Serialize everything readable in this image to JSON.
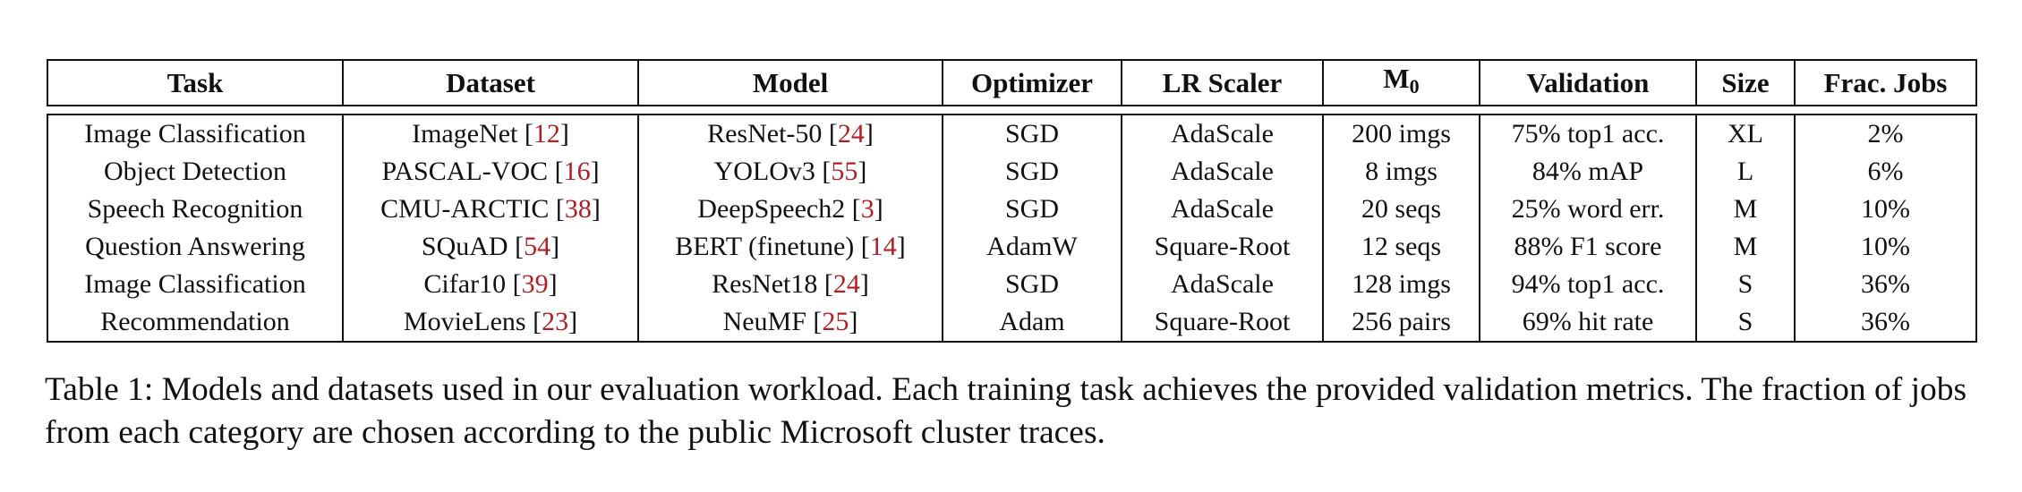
{
  "table": {
    "headers": {
      "task": "Task",
      "dataset": "Dataset",
      "model": "Model",
      "optimizer": "Optimizer",
      "lr_scaler": "LR Scaler",
      "m0_base": "M",
      "m0_sub": "0",
      "validation": "Validation",
      "size": "Size",
      "frac_jobs": "Frac. Jobs"
    },
    "rows": [
      {
        "task": "Image Classification",
        "dataset": "ImageNet ",
        "dataset_ref": "12",
        "model": "ResNet-50 ",
        "model_ref": "24",
        "optimizer": "SGD",
        "lr_scaler": "AdaScale",
        "m0": "200 imgs",
        "validation": "75% top1 acc.",
        "size": "XL",
        "frac": "2%"
      },
      {
        "task": "Object Detection",
        "dataset": "PASCAL-VOC ",
        "dataset_ref": "16",
        "model": "YOLOv3 ",
        "model_ref": "55",
        "optimizer": "SGD",
        "lr_scaler": "AdaScale",
        "m0": "8 imgs",
        "validation": "84% mAP",
        "size": "L",
        "frac": "6%"
      },
      {
        "task": "Speech Recognition",
        "dataset": "CMU-ARCTIC ",
        "dataset_ref": "38",
        "model": "DeepSpeech2 ",
        "model_ref": "3",
        "optimizer": "SGD",
        "lr_scaler": "AdaScale",
        "m0": "20 seqs",
        "validation": "25% word err.",
        "size": "M",
        "frac": "10%"
      },
      {
        "task": "Question Answering",
        "dataset": "SQuAD ",
        "dataset_ref": "54",
        "model": "BERT (finetune) ",
        "model_ref": "14",
        "optimizer": "AdamW",
        "lr_scaler": "Square-Root",
        "m0": "12 seqs",
        "validation": "88% F1 score",
        "size": "M",
        "frac": "10%"
      },
      {
        "task": "Image Classification",
        "dataset": "Cifar10 ",
        "dataset_ref": "39",
        "model": "ResNet18 ",
        "model_ref": "24",
        "optimizer": "SGD",
        "lr_scaler": "AdaScale",
        "m0": "128 imgs",
        "validation": "94% top1 acc.",
        "size": "S",
        "frac": "36%"
      },
      {
        "task": "Recommendation",
        "dataset": "MovieLens ",
        "dataset_ref": "23",
        "model": "NeuMF ",
        "model_ref": "25",
        "optimizer": "Adam",
        "lr_scaler": "Square-Root",
        "m0": "256 pairs",
        "validation": "69% hit rate",
        "size": "S",
        "frac": "36%"
      }
    ]
  },
  "caption": "Table 1: Models and datasets used in our evaluation workload. Each training task achieves the provided validation metrics. The fraction of jobs from each category are chosen according to the public Microsoft cluster traces.",
  "colors": {
    "citation": "#b01f24",
    "text": "#111111"
  }
}
